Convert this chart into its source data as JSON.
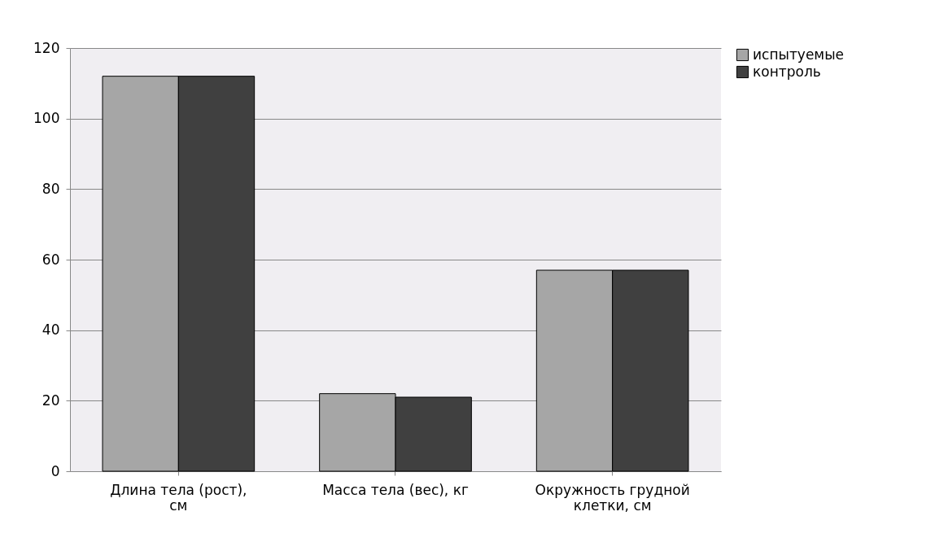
{
  "chart_data": {
    "type": "bar",
    "categories": [
      "Длина тела (рост), см",
      "Масса тела (вес), кг",
      "Окружность грудной клетки, см"
    ],
    "series": [
      {
        "name": "испытуемые",
        "color": "#a6a6a6",
        "values": [
          112,
          22,
          57
        ]
      },
      {
        "name": "контроль",
        "color": "#404040",
        "values": [
          112,
          21,
          57
        ]
      }
    ],
    "ylim": [
      0,
      120
    ],
    "yticks": [
      0,
      20,
      40,
      60,
      80,
      100,
      120
    ],
    "grid": "y",
    "legend": "right"
  }
}
